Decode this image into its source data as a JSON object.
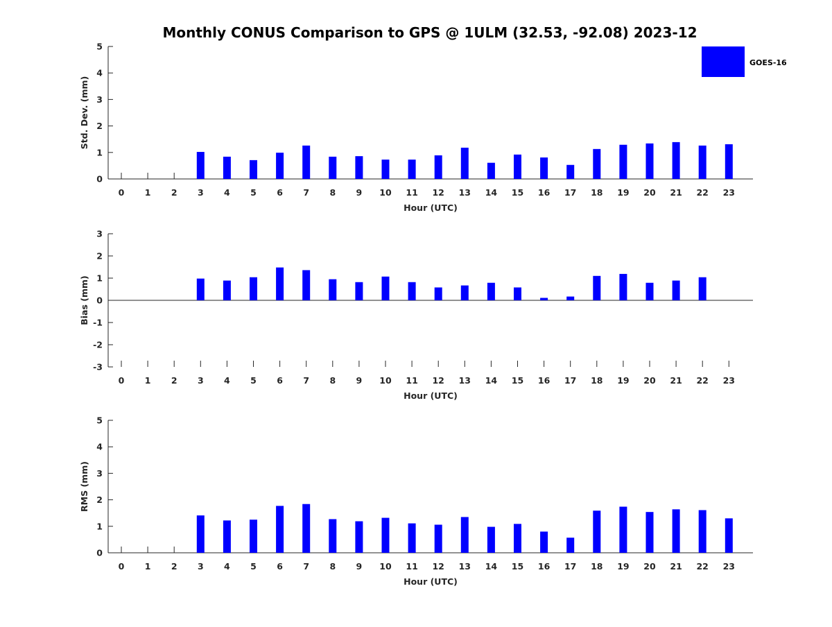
{
  "chart_data": {
    "type": "bar",
    "title": "Monthly CONUS Comparison to GPS @ 1ULM (32.53, -92.08) 2023-12",
    "legend": {
      "label": "GOES-16",
      "placement": "top-right"
    },
    "bar_color": "#0000ff",
    "categories": [
      "0",
      "1",
      "2",
      "3",
      "4",
      "5",
      "6",
      "7",
      "8",
      "9",
      "10",
      "11",
      "12",
      "13",
      "14",
      "15",
      "16",
      "17",
      "18",
      "19",
      "20",
      "21",
      "22",
      "23"
    ],
    "xlabel": "Hour (UTC)",
    "grid": false,
    "panels": [
      {
        "ylabel": "Std. Dev. (mm)",
        "ylim": [
          0,
          5
        ],
        "yticks": [
          "0",
          "1",
          "2",
          "3",
          "4",
          "5"
        ],
        "values": [
          null,
          null,
          null,
          1.02,
          0.84,
          0.71,
          0.99,
          1.26,
          0.84,
          0.86,
          0.73,
          0.73,
          0.89,
          1.18,
          0.61,
          0.92,
          0.81,
          0.53,
          1.13,
          1.29,
          1.34,
          1.39,
          1.26,
          1.31
        ]
      },
      {
        "ylabel": "Bias (mm)",
        "ylim": [
          -3,
          3
        ],
        "yticks": [
          "-3",
          "-2",
          "-1",
          "0",
          "1",
          "2",
          "3"
        ],
        "values": [
          null,
          null,
          null,
          0.98,
          0.89,
          1.04,
          1.48,
          1.36,
          0.95,
          0.82,
          1.07,
          0.82,
          0.58,
          0.67,
          0.79,
          0.58,
          0.11,
          0.17,
          1.1,
          1.19,
          0.79,
          0.89,
          1.04,
          null
        ]
      },
      {
        "ylabel": "RMS (mm)",
        "ylim": [
          0,
          5
        ],
        "yticks": [
          "0",
          "1",
          "2",
          "3",
          "4",
          "5"
        ],
        "values": [
          null,
          null,
          null,
          1.41,
          1.22,
          1.25,
          1.77,
          1.84,
          1.27,
          1.19,
          1.32,
          1.11,
          1.06,
          1.35,
          0.98,
          1.09,
          0.8,
          0.57,
          1.59,
          1.74,
          1.54,
          1.64,
          1.61,
          1.3
        ]
      }
    ]
  }
}
